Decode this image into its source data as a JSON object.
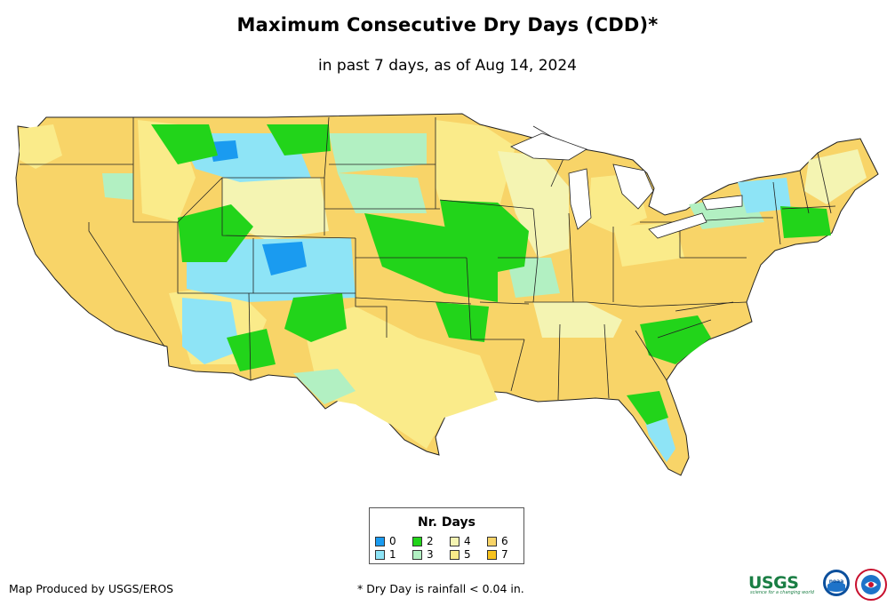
{
  "map": {
    "title": "Maximum Consecutive Dry Days (CDD)*",
    "subtitle": "in past 7 days, as of Aug 14, 2024",
    "legend": {
      "title": "Nr. Days",
      "items": [
        {
          "label": "0",
          "color": "#1a9bf0"
        },
        {
          "label": "1",
          "color": "#8ee4f6"
        },
        {
          "label": "2",
          "color": "#22d41a"
        },
        {
          "label": "3",
          "color": "#b2f0c2"
        },
        {
          "label": "4",
          "color": "#f4f4b2"
        },
        {
          "label": "5",
          "color": "#faeb8a"
        },
        {
          "label": "6",
          "color": "#f8d468"
        },
        {
          "label": "7",
          "color": "#f7c21c"
        }
      ]
    },
    "credit": "Map Produced by USGS/EROS",
    "footnote": "* Dry Day is rainfall < 0.04 in.",
    "logos": [
      {
        "name": "USGS",
        "text": "USGS",
        "tagline": "science for a changing world"
      },
      {
        "name": "NOAA",
        "text": "noaa"
      },
      {
        "name": "National Weather Service"
      }
    ],
    "background_color": "#f8d468",
    "boundary_color": "#222222"
  }
}
